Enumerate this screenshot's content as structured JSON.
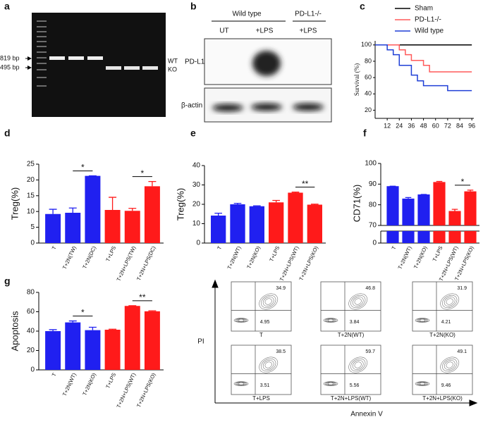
{
  "panel_labels": [
    "a",
    "b",
    "c",
    "d",
    "e",
    "f",
    "g"
  ],
  "gel": {
    "markers": [
      "819 bp",
      "495 bp"
    ],
    "bands": [
      "WT",
      "KO"
    ]
  },
  "blot": {
    "groups": [
      "Wild type",
      "PD-L1-/-"
    ],
    "lanes": [
      "UT",
      "+LPS",
      "+LPS"
    ],
    "proteins": [
      "PD-L1",
      "β-actin"
    ]
  },
  "chart_data": [
    {
      "type": "line",
      "ylabel": "Survival (%)",
      "legend": "top",
      "xlim": [
        0,
        98
      ],
      "xticks": [
        12,
        24,
        36,
        48,
        60,
        72,
        84,
        96
      ],
      "ylim": [
        10,
        105
      ],
      "yticks": [
        20,
        40,
        60,
        80,
        100
      ],
      "series": [
        {
          "name": "Sham",
          "color": "#000000",
          "x": [
            0,
            96
          ],
          "values": [
            100,
            100
          ]
        },
        {
          "name": "PD-L1-/-",
          "color": "#ff5a5a",
          "x": [
            0,
            24,
            24,
            30,
            30,
            36,
            36,
            48,
            48,
            54,
            54,
            96
          ],
          "values": [
            100,
            100,
            94,
            94,
            88,
            88,
            81,
            81,
            75,
            75,
            67,
            67
          ]
        },
        {
          "name": "Wild type",
          "color": "#1f3fd6",
          "x": [
            0,
            12,
            12,
            18,
            18,
            24,
            24,
            36,
            36,
            42,
            42,
            48,
            48,
            72,
            72,
            96
          ],
          "values": [
            100,
            100,
            94,
            94,
            88,
            88,
            75,
            75,
            63,
            63,
            56,
            56,
            50,
            50,
            44,
            44
          ]
        }
      ]
    },
    {
      "type": "bar",
      "ylabel": "Treg(%)",
      "ylim": [
        0,
        25
      ],
      "yticks": [
        0,
        5,
        10,
        15,
        20,
        25
      ],
      "categories": [
        "T",
        "T+2N(TW)",
        "T+2N(DC)",
        "T+LPS",
        "T+2N+LPS(TW)",
        "T+2N+LPS(DC)"
      ],
      "values": [
        9.2,
        9.6,
        21.3,
        10.5,
        10.2,
        18
      ],
      "errors": [
        1.5,
        1.5,
        0,
        4,
        0.8,
        1.5
      ],
      "colors": [
        "#2020f0",
        "#2020f0",
        "#2020f0",
        "#ff1a1a",
        "#ff1a1a",
        "#ff1a1a"
      ],
      "annotations": [
        {
          "text": "*",
          "between": [
            1,
            2
          ]
        },
        {
          "text": "*",
          "between": [
            4,
            5
          ]
        }
      ]
    },
    {
      "type": "bar",
      "ylabel": "Treg(%)",
      "ylim": [
        0,
        40
      ],
      "yticks": [
        0,
        10,
        20,
        30,
        40
      ],
      "categories": [
        "T",
        "T+2N(WT)",
        "T+2N(KO)",
        "T+LPS",
        "T+2N+LPS(WT)",
        "T+2N+LPS(KO)"
      ],
      "values": [
        14.2,
        20,
        19,
        21,
        26,
        19.8
      ],
      "errors": [
        1.2,
        0.5,
        0.2,
        1,
        0.3,
        0.3
      ],
      "colors": [
        "#2020f0",
        "#2020f0",
        "#2020f0",
        "#ff1a1a",
        "#ff1a1a",
        "#ff1a1a"
      ],
      "annotations": [
        {
          "text": "**",
          "between": [
            4,
            5
          ]
        }
      ]
    },
    {
      "type": "bar",
      "ylabel": "CD71(%)",
      "ylim": [
        0,
        100
      ],
      "ybreak": [
        10,
        70
      ],
      "yticks": [
        0,
        70,
        80,
        90,
        100
      ],
      "categories": [
        "T",
        "T+2N(WT)",
        "T+2N(KO)",
        "T+LPS",
        "T+2N+LPS(WT)",
        "T+2N+LPS(KO)"
      ],
      "values": [
        89,
        83,
        85,
        91,
        77,
        86.5
      ],
      "errors": [
        0,
        0.5,
        0,
        0.3,
        0.8,
        0.6
      ],
      "colors": [
        "#2020f0",
        "#2020f0",
        "#2020f0",
        "#ff1a1a",
        "#ff1a1a",
        "#ff1a1a"
      ],
      "annotations": [
        {
          "text": "*",
          "between": [
            4,
            5
          ]
        }
      ]
    },
    {
      "type": "bar",
      "ylabel": "Apoptosis",
      "ylim": [
        0,
        80
      ],
      "yticks": [
        0,
        20,
        40,
        60,
        80
      ],
      "categories": [
        "T",
        "T+2N(WT)",
        "T+2N(KO)",
        "T+LPS",
        "T+2N+LPS(WT)",
        "T+2N+LPS(KO)"
      ],
      "values": [
        40,
        49,
        41,
        41.5,
        66,
        60.5
      ],
      "errors": [
        1.5,
        1.5,
        3,
        0.5,
        0.3,
        0.5
      ],
      "colors": [
        "#2020f0",
        "#2020f0",
        "#2020f0",
        "#ff1a1a",
        "#ff1a1a",
        "#ff1a1a"
      ],
      "annotations": [
        {
          "text": "*",
          "between": [
            1,
            2
          ]
        },
        {
          "text": "**",
          "between": [
            4,
            5
          ]
        }
      ]
    }
  ],
  "flow": {
    "y_label": "PI",
    "x_label": "Annexin V",
    "plots": [
      {
        "label": "T",
        "upper_right": "34.9",
        "lower_right": "4.95"
      },
      {
        "label": "T+2N(WT)",
        "upper_right": "46.8",
        "lower_right": "3.84"
      },
      {
        "label": "T+2N(KO)",
        "upper_right": "31.9",
        "lower_right": "4.21"
      },
      {
        "label": "T+LPS",
        "upper_right": "38.5",
        "lower_right": "3.51"
      },
      {
        "label": "T+2N+LPS(WT)",
        "upper_right": "59.7",
        "lower_right": "5.56"
      },
      {
        "label": "T+2N+LPS(KO)",
        "upper_right": "49.1",
        "lower_right": "9.46"
      }
    ]
  }
}
